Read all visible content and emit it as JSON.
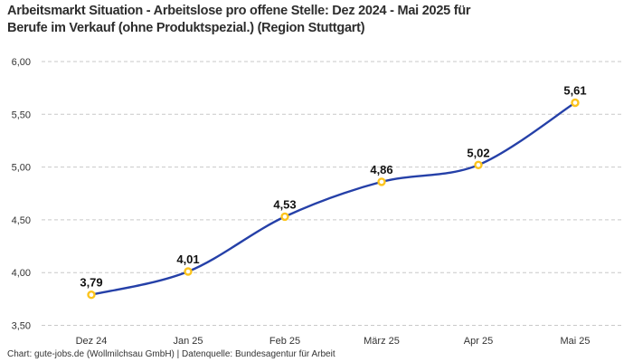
{
  "title": {
    "line1": "Arbeitsmarkt Situation - Arbeitslose pro offene Stelle: Dez 2024 - Mai 2025 für",
    "line2": "Berufe im Verkauf (ohne Produktspezial.) (Region Stuttgart)"
  },
  "footer": {
    "attribution": "Chart: gute-jobs.de (Wollmilchsau GmbH) | Datenquelle: Bundesagentur für Arbeit"
  },
  "chart_data": {
    "type": "line",
    "title": "Arbeitsmarkt Situation - Arbeitslose pro offene Stelle: Dez 2024 - Mai 2025 für Berufe im Verkauf (ohne Produktspezial.) (Region Stuttgart)",
    "categories": [
      "Dez 24",
      "Jan 25",
      "Feb 25",
      "März 25",
      "Apr 25",
      "Mai 25"
    ],
    "values": [
      3.79,
      4.01,
      4.53,
      4.86,
      5.02,
      5.61
    ],
    "value_labels": [
      "3,79",
      "4,01",
      "4,53",
      "4,86",
      "5,02",
      "5,61"
    ],
    "xlabel": "",
    "ylabel": "",
    "ylim": [
      3.5,
      6.0
    ],
    "ytick_values": [
      3.5,
      4.0,
      4.5,
      5.0,
      5.5,
      6.0
    ],
    "ytick_labels": [
      "3,50",
      "4,00",
      "4,50",
      "5,00",
      "5,50",
      "6,00"
    ],
    "grid": "horizontal-dashed",
    "legend": "none",
    "line_style": "smooth",
    "colors": {
      "line": "#2540a8",
      "marker_ring": "#fcc41d",
      "marker_fill": "#ffffff",
      "grid": "#c9c9c9",
      "axis_text": "#333333",
      "value_label": "#111111",
      "title_text": "#2d2d2d",
      "background": "#ffffff"
    }
  }
}
